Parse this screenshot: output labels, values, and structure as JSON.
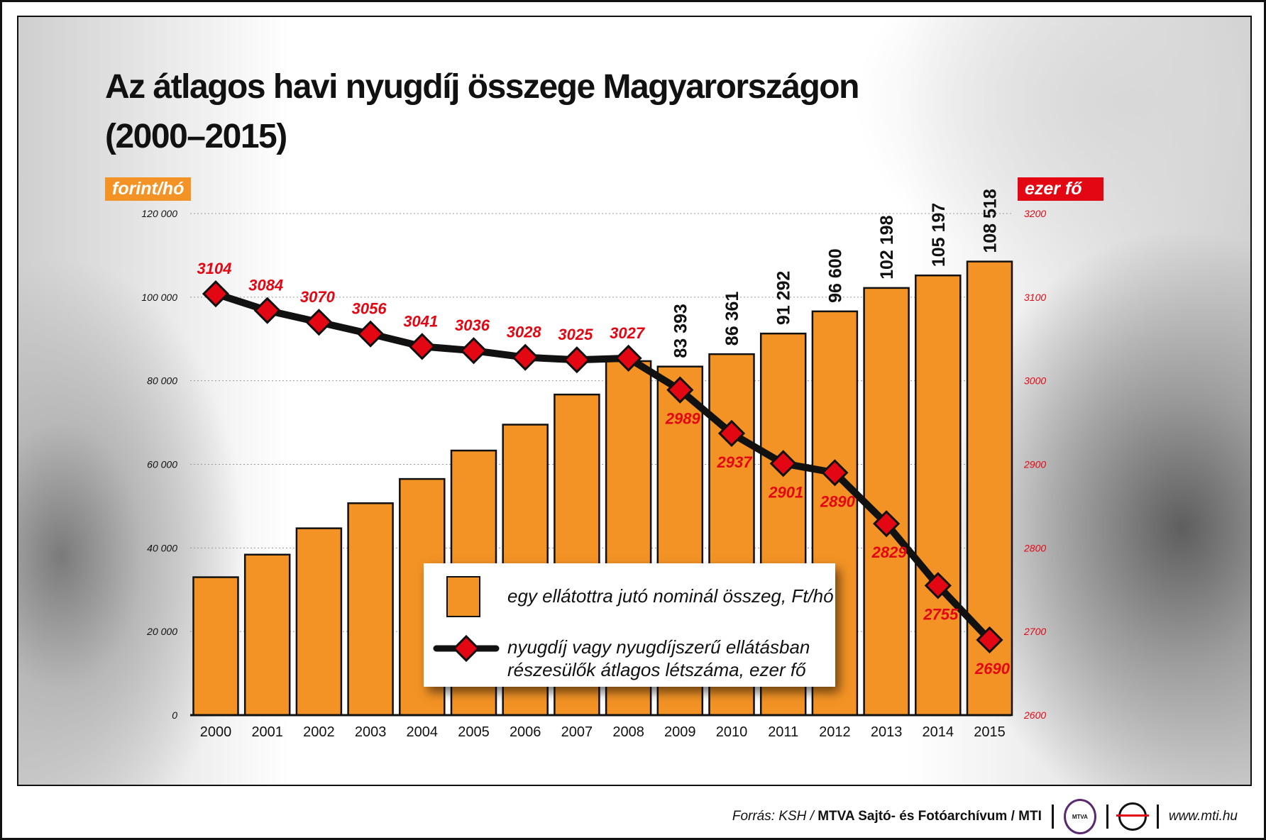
{
  "title_line1": "Az átlagos havi nyugdíj összege Magyarországon",
  "title_line2": "(2000–2015)",
  "footer": {
    "source_prefix": "Forrás: KSH / ",
    "source_bold": "MTVA Sajtó- és Fotóarchívum / MTI",
    "logo1_text": "MTVA",
    "url": "www.mti.hu"
  },
  "colors": {
    "bar": "#f39325",
    "line": "#111111",
    "marker": "#e30613",
    "left_unit_bg": "#f39325",
    "right_unit_bg": "#e30613"
  },
  "chart_data": {
    "type": "bar+line",
    "categories": [
      "2000",
      "2001",
      "2002",
      "2003",
      "2004",
      "2005",
      "2006",
      "2007",
      "2008",
      "2009",
      "2010",
      "2011",
      "2012",
      "2013",
      "2014",
      "2015"
    ],
    "left_axis": {
      "label": "forint/hó",
      "range": [
        0,
        120000
      ],
      "ticks": [
        0,
        20000,
        40000,
        60000,
        80000,
        100000,
        120000
      ],
      "tick_labels": [
        "0",
        "20 000",
        "40 000",
        "60 000",
        "80 000",
        "100 000",
        "120 000"
      ]
    },
    "right_axis": {
      "label": "ezer fő",
      "range": [
        2600,
        3200
      ],
      "ticks": [
        2600,
        2700,
        2800,
        2900,
        3000,
        3100,
        3200
      ],
      "tick_labels": [
        "2600",
        "2700",
        "2800",
        "2900",
        "3000",
        "3100",
        "3200"
      ]
    },
    "grid": true,
    "series": [
      {
        "name": "egy ellátottra jutó nominál összeg, Ft/hó",
        "type": "bar",
        "axis": "left",
        "values": [
          33000,
          38400,
          44700,
          50700,
          56500,
          63300,
          69500,
          76700,
          84700,
          83393,
          86361,
          91292,
          96600,
          102198,
          105197,
          108518
        ],
        "labels": [
          "",
          "",
          "",
          "",
          "",
          "",
          "",
          "",
          "",
          "83 393",
          "86 361",
          "91 292",
          "96 600",
          "102 198",
          "105 197",
          "108 518"
        ]
      },
      {
        "name": "nyugdíj vagy nyugdíjszerű ellátásban részesülők átlagos létszáma, ezer fő",
        "type": "line",
        "axis": "right",
        "values": [
          3104,
          3084,
          3070,
          3056,
          3041,
          3036,
          3028,
          3025,
          3027,
          2989,
          2937,
          2901,
          2890,
          2829,
          2755,
          2690
        ],
        "labels": [
          "3104",
          "3084",
          "3070",
          "3056",
          "3041",
          "3036",
          "3028",
          "3025",
          "3027",
          "2989",
          "2937",
          "2901",
          "2890",
          "2829",
          "2755",
          "2690"
        ]
      }
    ],
    "legend": {
      "bar": "egy ellátottra jutó nominál összeg, Ft/hó",
      "line_1": "nyugdíj vagy nyugdíjszerű ellátásban",
      "line_2": "részesülők átlagos létszáma, ezer fő",
      "placement": "bottom-center"
    }
  }
}
